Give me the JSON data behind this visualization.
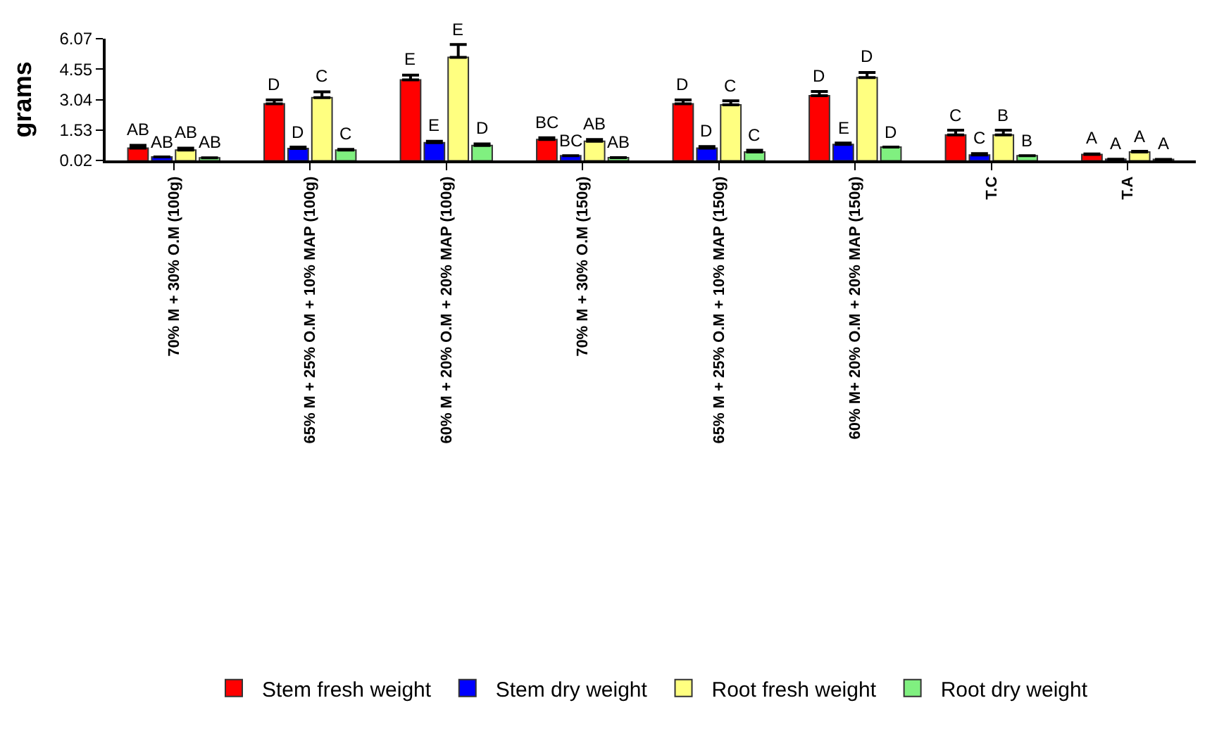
{
  "chart_data": {
    "type": "bar",
    "ylabel": "grams",
    "categories": [
      "70% M + 30% O.M (100g)",
      "65% M + 25% O.M + 10% MAP (100g)",
      "60% M + 20% O.M + 20% MAP (100g)",
      "70% M + 30% O.M (150g)",
      "65% M + 25% O.M + 10% MAP (150g)",
      "60% M+ 20% O.M + 20% MAP (150g)",
      "T.C",
      "T.A"
    ],
    "series": [
      {
        "name": "Stem fresh weight",
        "color": "#ff0000",
        "values": [
          0.63,
          2.83,
          4.02,
          1.06,
          2.83,
          3.23,
          1.28,
          0.31
        ],
        "errors": [
          [
            0.63,
            0.77
          ],
          [
            2.83,
            3.02
          ],
          [
            4.02,
            4.26
          ],
          [
            1.06,
            1.14
          ],
          [
            2.83,
            3.02
          ],
          [
            3.23,
            3.44
          ],
          [
            1.28,
            1.52
          ],
          [
            0.31,
            0.34
          ]
        ],
        "value_labels": [
          "AB",
          "D",
          "E",
          "BC",
          "D",
          "D",
          "C",
          "A"
        ]
      },
      {
        "name": "Stem dry weight",
        "color": "#0000ff",
        "values": [
          0.19,
          0.61,
          0.9,
          0.25,
          0.63,
          0.81,
          0.29,
          0.08
        ],
        "errors": [
          null,
          [
            0.61,
            0.68
          ],
          [
            0.9,
            0.97
          ],
          null,
          [
            0.63,
            0.71
          ],
          [
            0.81,
            0.88
          ],
          [
            0.29,
            0.36
          ],
          null
        ],
        "value_labels": [
          "AB",
          "D",
          "E",
          "BC",
          "D",
          "E",
          "C",
          "A"
        ]
      },
      {
        "name": "Root fresh weight",
        "color": "#ffff80",
        "values": [
          0.53,
          3.14,
          5.14,
          0.97,
          2.78,
          4.13,
          1.28,
          0.44
        ],
        "errors": [
          [
            0.53,
            0.63
          ],
          [
            3.14,
            3.43
          ],
          [
            5.14,
            5.78
          ],
          [
            0.97,
            1.06
          ],
          [
            2.78,
            2.98
          ],
          [
            4.13,
            4.39
          ],
          [
            1.28,
            1.52
          ],
          [
            0.44,
            0.47
          ]
        ],
        "value_labels": [
          "AB",
          "C",
          "E",
          "AB",
          "C",
          "D",
          "B",
          "A"
        ]
      },
      {
        "name": "Root dry weight",
        "color": "#80f080",
        "values": [
          0.15,
          0.53,
          0.76,
          0.16,
          0.44,
          0.68,
          0.25,
          0.07
        ],
        "errors": [
          null,
          [
            0.53,
            0.57
          ],
          [
            0.76,
            0.84
          ],
          null,
          [
            0.44,
            0.52
          ],
          null,
          null,
          null
        ],
        "value_labels": [
          "AB",
          "C",
          "D",
          "AB",
          "C",
          "D",
          "B",
          "A"
        ]
      }
    ],
    "ylim": [
      0.02,
      6.07
    ],
    "yticks": [
      0.02,
      1.53,
      3.04,
      4.55,
      6.07
    ],
    "legend": "bottom"
  }
}
